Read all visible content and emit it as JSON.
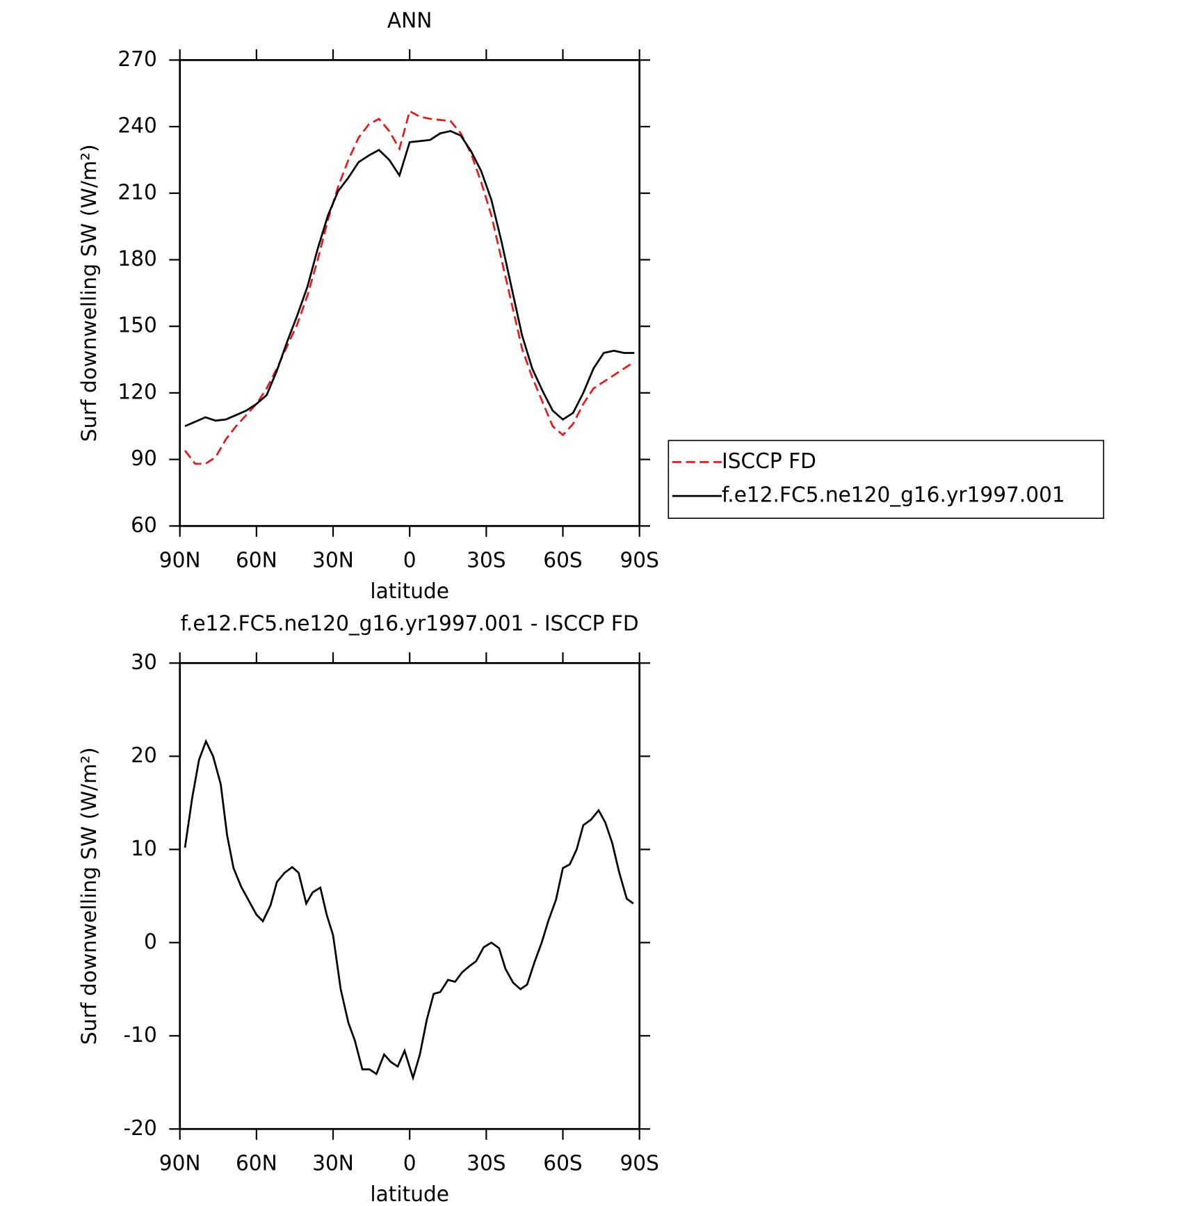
{
  "chart_data": [
    {
      "type": "line",
      "title": "ANN",
      "xlabel": "latitude",
      "ylabel": "Surf downwelling SW (W/m²)",
      "x": [
        88,
        84,
        80,
        76,
        72,
        68,
        64,
        60,
        56,
        52,
        48,
        44,
        40,
        36,
        32,
        28,
        24,
        20,
        16,
        12,
        8,
        4,
        0,
        -4,
        -8,
        -12,
        -16,
        -20,
        -24,
        -28,
        -32,
        -36,
        -40,
        -44,
        -48,
        -52,
        -56,
        -60,
        -64,
        -68,
        -72,
        -76,
        -80,
        -84,
        -88
      ],
      "series": [
        {
          "name": "ISCCP FD",
          "color": "#e41a1c",
          "dash": true,
          "values": [
            94,
            88,
            88,
            91,
            99,
            105,
            110,
            115,
            122,
            131,
            141,
            151,
            164,
            180,
            198,
            213,
            225,
            235,
            241,
            243.5,
            238,
            230,
            247,
            244.5,
            243.5,
            243,
            242.5,
            237,
            228,
            215,
            200,
            180,
            160,
            140,
            127,
            116,
            105,
            101,
            106,
            115,
            122,
            125,
            128,
            131,
            134
          ]
        },
        {
          "name": "f.e12.FC5.ne120_g16.yr1997.001",
          "color": "#000000",
          "dash": false,
          "values": [
            105,
            107,
            109,
            107.5,
            108,
            110,
            112,
            115,
            119,
            130,
            143,
            155,
            168,
            185,
            200,
            211,
            217,
            224,
            227,
            229.5,
            225,
            218,
            233,
            233.5,
            234,
            237,
            238,
            236,
            229,
            220,
            207,
            188,
            167,
            146,
            131,
            121,
            112,
            108,
            111,
            120,
            131,
            138,
            139,
            138,
            138
          ]
        }
      ],
      "xlim": [
        90,
        -90
      ],
      "xticks": [
        {
          "value": 90,
          "label": "90N"
        },
        {
          "value": 60,
          "label": "60N"
        },
        {
          "value": 30,
          "label": "30N"
        },
        0,
        {
          "value": -30,
          "label": "30S"
        },
        {
          "value": -60,
          "label": "60S"
        },
        {
          "value": -90,
          "label": "90S"
        }
      ],
      "ylim": [
        60,
        270
      ],
      "yticks": [
        60,
        90,
        120,
        150,
        180,
        210,
        240,
        270
      ],
      "legend": "right"
    },
    {
      "type": "line",
      "title": "f.e12.FC5.ne120_g16.yr1997.001 - ISCCP FD",
      "xlabel": "latitude",
      "ylabel": "Surf downwelling SW (W/m²)",
      "x": [
        88,
        85.2,
        82.5,
        79.8,
        77,
        74,
        71.5,
        69,
        66,
        63,
        60,
        57.5,
        54.5,
        52,
        49,
        46,
        43.5,
        40.5,
        38,
        35,
        32.5,
        30,
        27,
        24,
        21.5,
        18.5,
        15.7,
        13,
        10,
        7.4,
        4.7,
        2,
        -1.3,
        -4,
        -6.7,
        -9.4,
        -12,
        -15,
        -17.8,
        -20.5,
        -23.5,
        -26,
        -29,
        -32,
        -35,
        -37.5,
        -40.5,
        -43.4,
        -46,
        -49,
        -51.7,
        -54.4,
        -57.3,
        -60,
        -62.7,
        -65.4,
        -68,
        -71,
        -74,
        -76.6,
        -79.3,
        -82,
        -85,
        -87.6
      ],
      "series": [
        {
          "color": "#000000",
          "dash": false,
          "values": [
            10.2,
            15.5,
            19.6,
            21.6,
            20,
            17,
            11.5,
            8,
            6,
            4.5,
            3,
            2.3,
            4,
            6.5,
            7.5,
            8.1,
            7.5,
            4.2,
            5.4,
            5.9,
            3,
            0.8,
            -5,
            -8.6,
            -10.5,
            -13.6,
            -13.6,
            -14.1,
            -12,
            -12.8,
            -13.3,
            -11.6,
            -14.5,
            -12,
            -8.3,
            -5.5,
            -5.3,
            -4,
            -4.2,
            -3.2,
            -2.5,
            -2,
            -0.5,
            0,
            -0.6,
            -2.8,
            -4.3,
            -5,
            -4.5,
            -2,
            0,
            2.4,
            4.6,
            8,
            8.4,
            10,
            12.6,
            13.2,
            14.2,
            12.9,
            10.7,
            7.6,
            4.7,
            4.2
          ]
        }
      ],
      "xlim": [
        90,
        -90
      ],
      "xticks": [
        {
          "value": 90,
          "label": "90N"
        },
        {
          "value": 60,
          "label": "60N"
        },
        {
          "value": 30,
          "label": "30N"
        },
        0,
        {
          "value": -30,
          "label": "30S"
        },
        {
          "value": -60,
          "label": "60S"
        },
        {
          "value": -90,
          "label": "90S"
        }
      ],
      "ylim": [
        -20,
        30
      ],
      "yticks": [
        -20,
        -10,
        0,
        10,
        20,
        30
      ]
    }
  ]
}
